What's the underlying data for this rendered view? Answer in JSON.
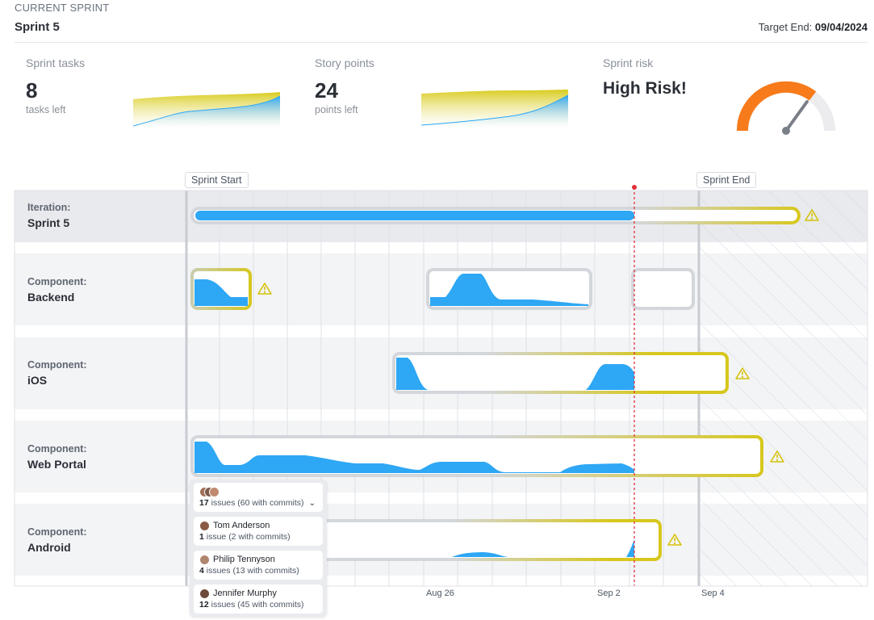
{
  "header": {
    "kicker": "CURRENT SPRINT",
    "title": "Sprint 5",
    "target_label": "Target End:",
    "target_value": "09/04/2024"
  },
  "kpis": {
    "tasks": {
      "label": "Sprint tasks",
      "value": "8",
      "unit": "tasks left"
    },
    "points": {
      "label": "Story points",
      "value": "24",
      "unit": "points left"
    },
    "risk": {
      "label": "Sprint risk",
      "value": "High Risk!"
    }
  },
  "colors": {
    "accent_blue": "#2ea7f5",
    "warning_yellow": "#d4c20a",
    "risk_orange": "#f77b1b",
    "today_red": "#e0313a"
  },
  "timeline": {
    "sprint_start_label": "Sprint Start",
    "sprint_end_label": "Sprint End",
    "axis_labels": [
      "Aug 26",
      "Sep 2",
      "Sep 4"
    ],
    "rows": [
      {
        "kind": "Iteration:",
        "name": "Sprint 5"
      },
      {
        "kind": "Component:",
        "name": "Backend"
      },
      {
        "kind": "Component:",
        "name": "iOS"
      },
      {
        "kind": "Component:",
        "name": "Web Portal"
      },
      {
        "kind": "Component:",
        "name": "Android"
      }
    ]
  },
  "popup": {
    "summary": {
      "count": "17",
      "text": " issues (60 with commits)"
    },
    "people": [
      {
        "name": "Tom Anderson",
        "count": "1",
        "text": " issue (2 with commits)"
      },
      {
        "name": "Philip Tennyson",
        "count": "4",
        "text": " issues (13 with commits)"
      },
      {
        "name": "Jennifer Murphy",
        "count": "12",
        "text": " issues (45 with commits)"
      }
    ]
  },
  "icons": {
    "warning": "warning-triangle-icon",
    "expand": "chevron-down-icon"
  }
}
